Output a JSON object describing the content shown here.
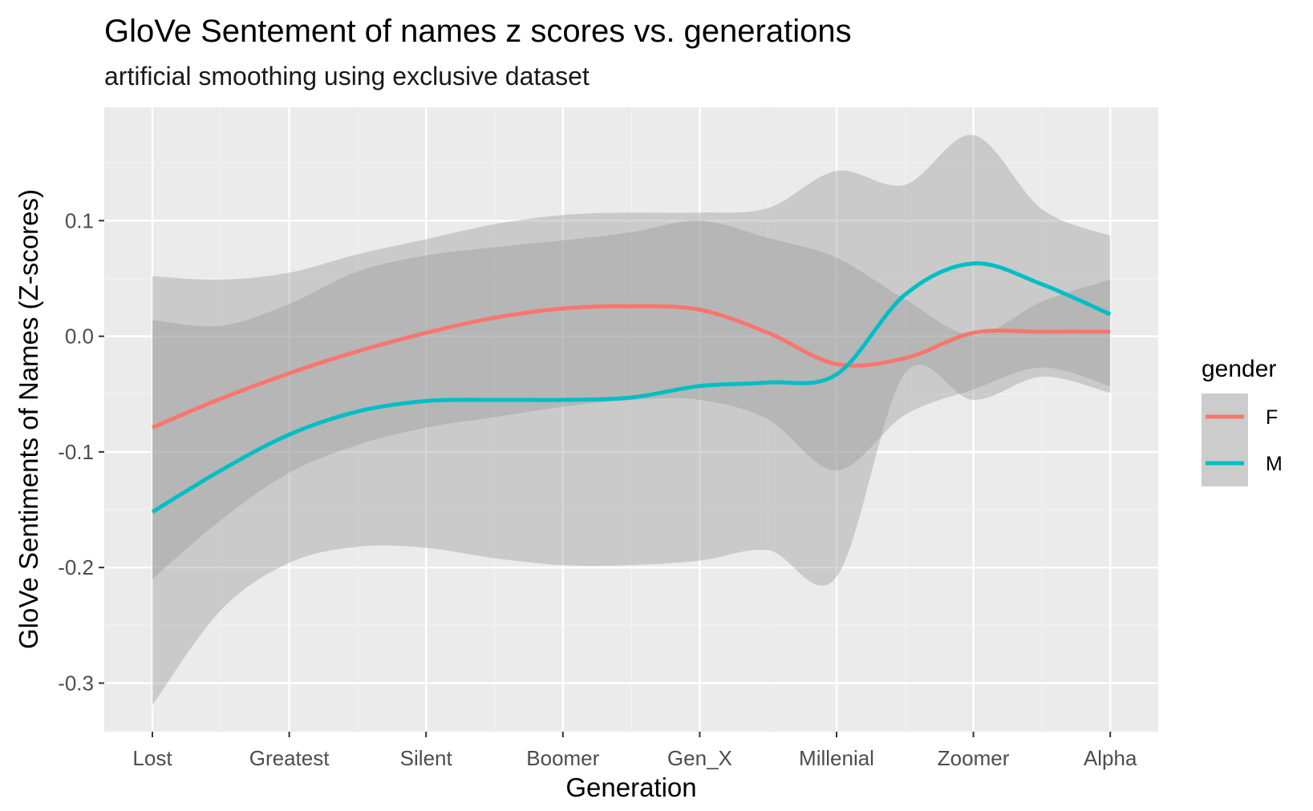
{
  "chart_data": {
    "type": "line",
    "title": "GloVe Sentement of names z scores vs. generations",
    "subtitle": "artificial smoothing using exclusive dataset",
    "xlabel": "Generation",
    "ylabel": "GloVe Sentiments of Names (Z-scores)",
    "categories": [
      "Lost",
      "Greatest",
      "Silent",
      "Boomer",
      "Gen_X",
      "Millenial",
      "Zoomer",
      "Alpha"
    ],
    "ylim": [
      -0.342,
      0.198
    ],
    "y_ticks": [
      -0.3,
      -0.2,
      -0.1,
      0.0,
      0.1
    ],
    "y_tick_labels": [
      "-0.3",
      "-0.2",
      "-0.1",
      "0.0",
      "0.1"
    ],
    "grid": true,
    "legend": {
      "title": "gender",
      "position": "right"
    },
    "series": [
      {
        "name": "F",
        "color": "#F8766D",
        "x": [
          0,
          0.5,
          1,
          1.5,
          2,
          2.5,
          3,
          3.5,
          4,
          4.5,
          5,
          5.5,
          6,
          6.5,
          7
        ],
        "values": [
          -0.079,
          -0.054,
          -0.032,
          -0.013,
          0.003,
          0.016,
          0.024,
          0.026,
          0.023,
          0.003,
          -0.024,
          -0.019,
          0.003,
          0.004,
          0.004
        ],
        "ci_upper": [
          0.052,
          0.049,
          0.055,
          0.071,
          0.084,
          0.097,
          0.105,
          0.107,
          0.107,
          0.111,
          0.143,
          0.131,
          0.174,
          0.11,
          0.087
        ],
        "ci_lower": [
          -0.21,
          -0.159,
          -0.118,
          -0.094,
          -0.079,
          -0.07,
          -0.061,
          -0.055,
          -0.055,
          -0.072,
          -0.116,
          -0.068,
          -0.046,
          -0.027,
          -0.043
        ]
      },
      {
        "name": "M",
        "color": "#00BFC4",
        "x": [
          0,
          0.5,
          1,
          1.5,
          2,
          2.5,
          3,
          3.5,
          4,
          4.5,
          5,
          5.5,
          6,
          6.5,
          7
        ],
        "values": [
          -0.152,
          -0.116,
          -0.085,
          -0.065,
          -0.056,
          -0.055,
          -0.055,
          -0.053,
          -0.043,
          -0.04,
          -0.033,
          0.036,
          0.063,
          0.045,
          0.019
        ],
        "ci_upper": [
          0.014,
          0.009,
          0.028,
          0.056,
          0.07,
          0.077,
          0.083,
          0.09,
          0.1,
          0.085,
          0.068,
          0.032,
          0.001,
          0.03,
          0.049
        ],
        "ci_lower": [
          -0.319,
          -0.237,
          -0.196,
          -0.182,
          -0.183,
          -0.192,
          -0.198,
          -0.198,
          -0.194,
          -0.185,
          -0.208,
          -0.032,
          -0.055,
          -0.035,
          -0.049
        ]
      }
    ]
  }
}
